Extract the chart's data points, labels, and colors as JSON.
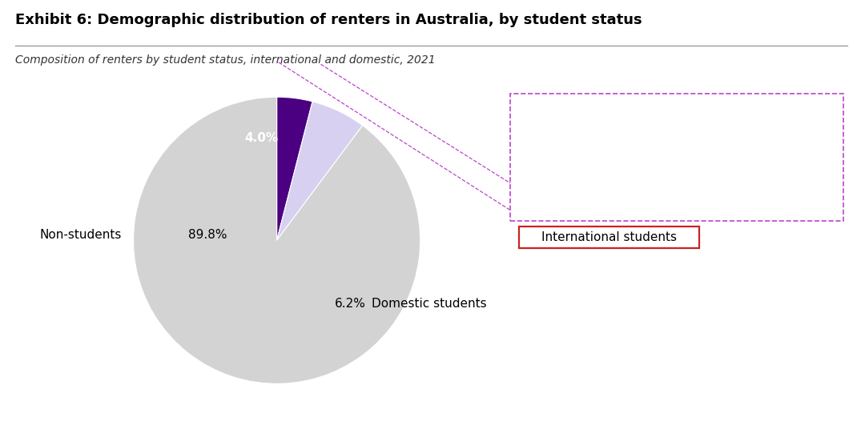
{
  "title": "Exhibit 6: Demographic distribution of renters in Australia, by student status",
  "subtitle": "Composition of renters by student status, international and domestic, 2021",
  "slices": [
    {
      "label": "International students",
      "value": 4.0,
      "color": "#4B0082",
      "pct_label": "4.0%"
    },
    {
      "label": "Domestic students",
      "value": 6.2,
      "color": "#D8D0F0",
      "pct_label": "6.2%"
    },
    {
      "label": "Non-students",
      "value": 89.8,
      "color": "#D3D3D3",
      "pct_label": "89.8%"
    }
  ],
  "startangle": 90,
  "annotation_box_edgecolor": "#BB44CC",
  "annotation_box_facecolor": "#FFFFFF",
  "intl_label_box_edgecolor": "#CC2222",
  "background_color": "#FFFFFF",
  "title_fontsize": 13,
  "subtitle_fontsize": 10,
  "label_fontsize": 11,
  "annot_fontsize": 10.5,
  "purple_color": "#5B0EAD"
}
